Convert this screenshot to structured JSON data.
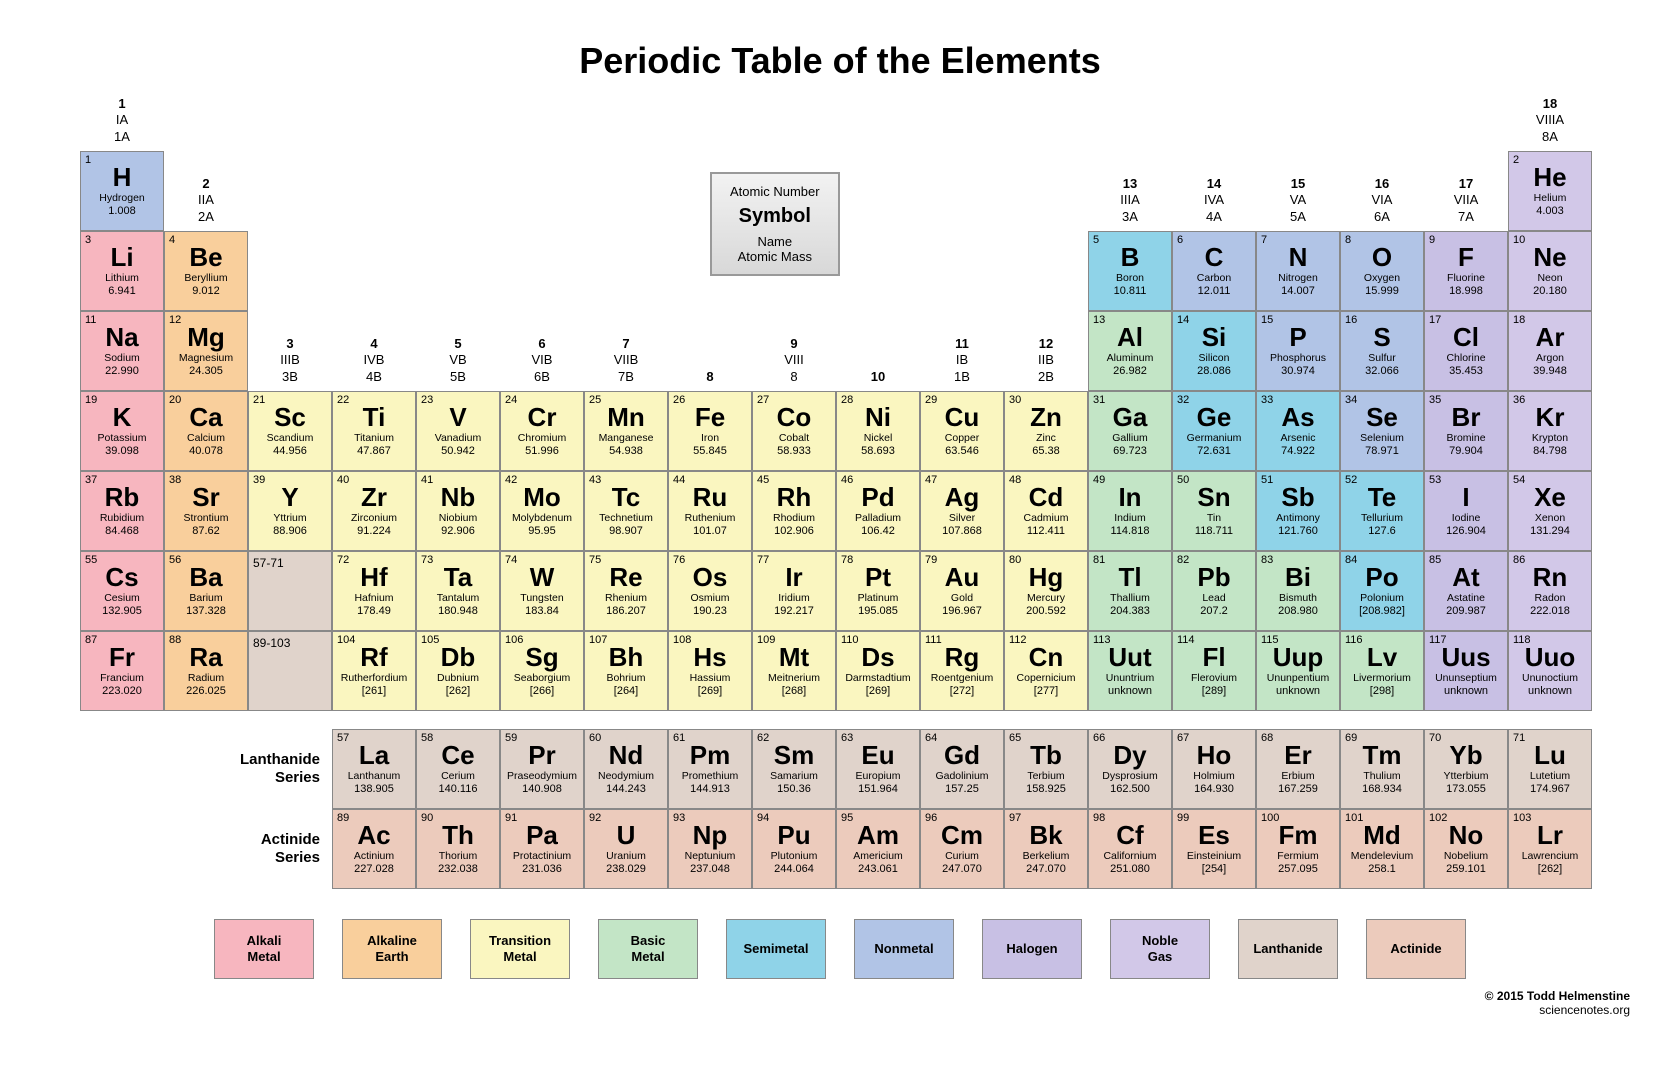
{
  "title": "Periodic Table of the Elements",
  "colors": {
    "alkali": "#f7b6bf",
    "alkaline": "#f9cf9c",
    "transition": "#faf6c0",
    "basic": "#c3e5c6",
    "semimetal": "#8fd3e8",
    "nonmetal": "#b1c4e6",
    "halogen": "#c8c0e4",
    "noble": "#d2c8e8",
    "lanthanide": "#e0d3cb",
    "actinide": "#eccbbc"
  },
  "key": {
    "atomic_number": "Atomic Number",
    "symbol": "Symbol",
    "name": "Name",
    "mass": "Atomic  Mass"
  },
  "groups": [
    {
      "col": 1,
      "n": "1",
      "a": "IA",
      "b": "1A"
    },
    {
      "col": 2,
      "n": "2",
      "a": "IIA",
      "b": "2A"
    },
    {
      "col": 3,
      "n": "3",
      "a": "IIIB",
      "b": "3B"
    },
    {
      "col": 4,
      "n": "4",
      "a": "IVB",
      "b": "4B"
    },
    {
      "col": 5,
      "n": "5",
      "a": "VB",
      "b": "5B"
    },
    {
      "col": 6,
      "n": "6",
      "a": "VIB",
      "b": "6B"
    },
    {
      "col": 7,
      "n": "7",
      "a": "VIIB",
      "b": "7B"
    },
    {
      "col": 8,
      "n": "8",
      "a": "",
      "b": ""
    },
    {
      "col": 9,
      "n": "9",
      "a": "VIII",
      "b": "8"
    },
    {
      "col": 10,
      "n": "10",
      "a": "",
      "b": ""
    },
    {
      "col": 11,
      "n": "11",
      "a": "IB",
      "b": "1B"
    },
    {
      "col": 12,
      "n": "12",
      "a": "IIB",
      "b": "2B"
    },
    {
      "col": 13,
      "n": "13",
      "a": "IIIA",
      "b": "3A"
    },
    {
      "col": 14,
      "n": "14",
      "a": "IVA",
      "b": "4A"
    },
    {
      "col": 15,
      "n": "15",
      "a": "VA",
      "b": "5A"
    },
    {
      "col": 16,
      "n": "16",
      "a": "VIA",
      "b": "6A"
    },
    {
      "col": 17,
      "n": "17",
      "a": "VIIA",
      "b": "7A"
    },
    {
      "col": 18,
      "n": "18",
      "a": "VIIIA",
      "b": "8A"
    }
  ],
  "elements": [
    {
      "n": 1,
      "s": "H",
      "name": "Hydrogen",
      "m": "1.008",
      "r": 1,
      "c": 1,
      "cat": "nonmetal"
    },
    {
      "n": 2,
      "s": "He",
      "name": "Helium",
      "m": "4.003",
      "r": 1,
      "c": 18,
      "cat": "noble"
    },
    {
      "n": 3,
      "s": "Li",
      "name": "Lithium",
      "m": "6.941",
      "r": 2,
      "c": 1,
      "cat": "alkali"
    },
    {
      "n": 4,
      "s": "Be",
      "name": "Beryllium",
      "m": "9.012",
      "r": 2,
      "c": 2,
      "cat": "alkaline"
    },
    {
      "n": 5,
      "s": "B",
      "name": "Boron",
      "m": "10.811",
      "r": 2,
      "c": 13,
      "cat": "semimetal"
    },
    {
      "n": 6,
      "s": "C",
      "name": "Carbon",
      "m": "12.011",
      "r": 2,
      "c": 14,
      "cat": "nonmetal"
    },
    {
      "n": 7,
      "s": "N",
      "name": "Nitrogen",
      "m": "14.007",
      "r": 2,
      "c": 15,
      "cat": "nonmetal"
    },
    {
      "n": 8,
      "s": "O",
      "name": "Oxygen",
      "m": "15.999",
      "r": 2,
      "c": 16,
      "cat": "nonmetal"
    },
    {
      "n": 9,
      "s": "F",
      "name": "Fluorine",
      "m": "18.998",
      "r": 2,
      "c": 17,
      "cat": "halogen"
    },
    {
      "n": 10,
      "s": "Ne",
      "name": "Neon",
      "m": "20.180",
      "r": 2,
      "c": 18,
      "cat": "noble"
    },
    {
      "n": 11,
      "s": "Na",
      "name": "Sodium",
      "m": "22.990",
      "r": 3,
      "c": 1,
      "cat": "alkali"
    },
    {
      "n": 12,
      "s": "Mg",
      "name": "Magnesium",
      "m": "24.305",
      "r": 3,
      "c": 2,
      "cat": "alkaline"
    },
    {
      "n": 13,
      "s": "Al",
      "name": "Aluminum",
      "m": "26.982",
      "r": 3,
      "c": 13,
      "cat": "basic"
    },
    {
      "n": 14,
      "s": "Si",
      "name": "Silicon",
      "m": "28.086",
      "r": 3,
      "c": 14,
      "cat": "semimetal"
    },
    {
      "n": 15,
      "s": "P",
      "name": "Phosphorus",
      "m": "30.974",
      "r": 3,
      "c": 15,
      "cat": "nonmetal"
    },
    {
      "n": 16,
      "s": "S",
      "name": "Sulfur",
      "m": "32.066",
      "r": 3,
      "c": 16,
      "cat": "nonmetal"
    },
    {
      "n": 17,
      "s": "Cl",
      "name": "Chlorine",
      "m": "35.453",
      "r": 3,
      "c": 17,
      "cat": "halogen"
    },
    {
      "n": 18,
      "s": "Ar",
      "name": "Argon",
      "m": "39.948",
      "r": 3,
      "c": 18,
      "cat": "noble"
    },
    {
      "n": 19,
      "s": "K",
      "name": "Potassium",
      "m": "39.098",
      "r": 4,
      "c": 1,
      "cat": "alkali"
    },
    {
      "n": 20,
      "s": "Ca",
      "name": "Calcium",
      "m": "40.078",
      "r": 4,
      "c": 2,
      "cat": "alkaline"
    },
    {
      "n": 21,
      "s": "Sc",
      "name": "Scandium",
      "m": "44.956",
      "r": 4,
      "c": 3,
      "cat": "transition"
    },
    {
      "n": 22,
      "s": "Ti",
      "name": "Titanium",
      "m": "47.867",
      "r": 4,
      "c": 4,
      "cat": "transition"
    },
    {
      "n": 23,
      "s": "V",
      "name": "Vanadium",
      "m": "50.942",
      "r": 4,
      "c": 5,
      "cat": "transition"
    },
    {
      "n": 24,
      "s": "Cr",
      "name": "Chromium",
      "m": "51.996",
      "r": 4,
      "c": 6,
      "cat": "transition"
    },
    {
      "n": 25,
      "s": "Mn",
      "name": "Manganese",
      "m": "54.938",
      "r": 4,
      "c": 7,
      "cat": "transition"
    },
    {
      "n": 26,
      "s": "Fe",
      "name": "Iron",
      "m": "55.845",
      "r": 4,
      "c": 8,
      "cat": "transition"
    },
    {
      "n": 27,
      "s": "Co",
      "name": "Cobalt",
      "m": "58.933",
      "r": 4,
      "c": 9,
      "cat": "transition"
    },
    {
      "n": 28,
      "s": "Ni",
      "name": "Nickel",
      "m": "58.693",
      "r": 4,
      "c": 10,
      "cat": "transition"
    },
    {
      "n": 29,
      "s": "Cu",
      "name": "Copper",
      "m": "63.546",
      "r": 4,
      "c": 11,
      "cat": "transition"
    },
    {
      "n": 30,
      "s": "Zn",
      "name": "Zinc",
      "m": "65.38",
      "r": 4,
      "c": 12,
      "cat": "transition"
    },
    {
      "n": 31,
      "s": "Ga",
      "name": "Gallium",
      "m": "69.723",
      "r": 4,
      "c": 13,
      "cat": "basic"
    },
    {
      "n": 32,
      "s": "Ge",
      "name": "Germanium",
      "m": "72.631",
      "r": 4,
      "c": 14,
      "cat": "semimetal"
    },
    {
      "n": 33,
      "s": "As",
      "name": "Arsenic",
      "m": "74.922",
      "r": 4,
      "c": 15,
      "cat": "semimetal"
    },
    {
      "n": 34,
      "s": "Se",
      "name": "Selenium",
      "m": "78.971",
      "r": 4,
      "c": 16,
      "cat": "nonmetal"
    },
    {
      "n": 35,
      "s": "Br",
      "name": "Bromine",
      "m": "79.904",
      "r": 4,
      "c": 17,
      "cat": "halogen"
    },
    {
      "n": 36,
      "s": "Kr",
      "name": "Krypton",
      "m": "84.798",
      "r": 4,
      "c": 18,
      "cat": "noble"
    },
    {
      "n": 37,
      "s": "Rb",
      "name": "Rubidium",
      "m": "84.468",
      "r": 5,
      "c": 1,
      "cat": "alkali"
    },
    {
      "n": 38,
      "s": "Sr",
      "name": "Strontium",
      "m": "87.62",
      "r": 5,
      "c": 2,
      "cat": "alkaline"
    },
    {
      "n": 39,
      "s": "Y",
      "name": "Yttrium",
      "m": "88.906",
      "r": 5,
      "c": 3,
      "cat": "transition"
    },
    {
      "n": 40,
      "s": "Zr",
      "name": "Zirconium",
      "m": "91.224",
      "r": 5,
      "c": 4,
      "cat": "transition"
    },
    {
      "n": 41,
      "s": "Nb",
      "name": "Niobium",
      "m": "92.906",
      "r": 5,
      "c": 5,
      "cat": "transition"
    },
    {
      "n": 42,
      "s": "Mo",
      "name": "Molybdenum",
      "m": "95.95",
      "r": 5,
      "c": 6,
      "cat": "transition"
    },
    {
      "n": 43,
      "s": "Tc",
      "name": "Technetium",
      "m": "98.907",
      "r": 5,
      "c": 7,
      "cat": "transition"
    },
    {
      "n": 44,
      "s": "Ru",
      "name": "Ruthenium",
      "m": "101.07",
      "r": 5,
      "c": 8,
      "cat": "transition"
    },
    {
      "n": 45,
      "s": "Rh",
      "name": "Rhodium",
      "m": "102.906",
      "r": 5,
      "c": 9,
      "cat": "transition"
    },
    {
      "n": 46,
      "s": "Pd",
      "name": "Palladium",
      "m": "106.42",
      "r": 5,
      "c": 10,
      "cat": "transition"
    },
    {
      "n": 47,
      "s": "Ag",
      "name": "Silver",
      "m": "107.868",
      "r": 5,
      "c": 11,
      "cat": "transition"
    },
    {
      "n": 48,
      "s": "Cd",
      "name": "Cadmium",
      "m": "112.411",
      "r": 5,
      "c": 12,
      "cat": "transition"
    },
    {
      "n": 49,
      "s": "In",
      "name": "Indium",
      "m": "114.818",
      "r": 5,
      "c": 13,
      "cat": "basic"
    },
    {
      "n": 50,
      "s": "Sn",
      "name": "Tin",
      "m": "118.711",
      "r": 5,
      "c": 14,
      "cat": "basic"
    },
    {
      "n": 51,
      "s": "Sb",
      "name": "Antimony",
      "m": "121.760",
      "r": 5,
      "c": 15,
      "cat": "semimetal"
    },
    {
      "n": 52,
      "s": "Te",
      "name": "Tellurium",
      "m": "127.6",
      "r": 5,
      "c": 16,
      "cat": "semimetal"
    },
    {
      "n": 53,
      "s": "I",
      "name": "Iodine",
      "m": "126.904",
      "r": 5,
      "c": 17,
      "cat": "halogen"
    },
    {
      "n": 54,
      "s": "Xe",
      "name": "Xenon",
      "m": "131.294",
      "r": 5,
      "c": 18,
      "cat": "noble"
    },
    {
      "n": 55,
      "s": "Cs",
      "name": "Cesium",
      "m": "132.905",
      "r": 6,
      "c": 1,
      "cat": "alkali"
    },
    {
      "n": 56,
      "s": "Ba",
      "name": "Barium",
      "m": "137.328",
      "r": 6,
      "c": 2,
      "cat": "alkaline"
    },
    {
      "n": 72,
      "s": "Hf",
      "name": "Hafnium",
      "m": "178.49",
      "r": 6,
      "c": 4,
      "cat": "transition"
    },
    {
      "n": 73,
      "s": "Ta",
      "name": "Tantalum",
      "m": "180.948",
      "r": 6,
      "c": 5,
      "cat": "transition"
    },
    {
      "n": 74,
      "s": "W",
      "name": "Tungsten",
      "m": "183.84",
      "r": 6,
      "c": 6,
      "cat": "transition"
    },
    {
      "n": 75,
      "s": "Re",
      "name": "Rhenium",
      "m": "186.207",
      "r": 6,
      "c": 7,
      "cat": "transition"
    },
    {
      "n": 76,
      "s": "Os",
      "name": "Osmium",
      "m": "190.23",
      "r": 6,
      "c": 8,
      "cat": "transition"
    },
    {
      "n": 77,
      "s": "Ir",
      "name": "Iridium",
      "m": "192.217",
      "r": 6,
      "c": 9,
      "cat": "transition"
    },
    {
      "n": 78,
      "s": "Pt",
      "name": "Platinum",
      "m": "195.085",
      "r": 6,
      "c": 10,
      "cat": "transition"
    },
    {
      "n": 79,
      "s": "Au",
      "name": "Gold",
      "m": "196.967",
      "r": 6,
      "c": 11,
      "cat": "transition"
    },
    {
      "n": 80,
      "s": "Hg",
      "name": "Mercury",
      "m": "200.592",
      "r": 6,
      "c": 12,
      "cat": "transition"
    },
    {
      "n": 81,
      "s": "Tl",
      "name": "Thallium",
      "m": "204.383",
      "r": 6,
      "c": 13,
      "cat": "basic"
    },
    {
      "n": 82,
      "s": "Pb",
      "name": "Lead",
      "m": "207.2",
      "r": 6,
      "c": 14,
      "cat": "basic"
    },
    {
      "n": 83,
      "s": "Bi",
      "name": "Bismuth",
      "m": "208.980",
      "r": 6,
      "c": 15,
      "cat": "basic"
    },
    {
      "n": 84,
      "s": "Po",
      "name": "Polonium",
      "m": "[208.982]",
      "r": 6,
      "c": 16,
      "cat": "semimetal"
    },
    {
      "n": 85,
      "s": "At",
      "name": "Astatine",
      "m": "209.987",
      "r": 6,
      "c": 17,
      "cat": "halogen"
    },
    {
      "n": 86,
      "s": "Rn",
      "name": "Radon",
      "m": "222.018",
      "r": 6,
      "c": 18,
      "cat": "noble"
    },
    {
      "n": 87,
      "s": "Fr",
      "name": "Francium",
      "m": "223.020",
      "r": 7,
      "c": 1,
      "cat": "alkali"
    },
    {
      "n": 88,
      "s": "Ra",
      "name": "Radium",
      "m": "226.025",
      "r": 7,
      "c": 2,
      "cat": "alkaline"
    },
    {
      "n": 104,
      "s": "Rf",
      "name": "Rutherfordium",
      "m": "[261]",
      "r": 7,
      "c": 4,
      "cat": "transition"
    },
    {
      "n": 105,
      "s": "Db",
      "name": "Dubnium",
      "m": "[262]",
      "r": 7,
      "c": 5,
      "cat": "transition"
    },
    {
      "n": 106,
      "s": "Sg",
      "name": "Seaborgium",
      "m": "[266]",
      "r": 7,
      "c": 6,
      "cat": "transition"
    },
    {
      "n": 107,
      "s": "Bh",
      "name": "Bohrium",
      "m": "[264]",
      "r": 7,
      "c": 7,
      "cat": "transition"
    },
    {
      "n": 108,
      "s": "Hs",
      "name": "Hassium",
      "m": "[269]",
      "r": 7,
      "c": 8,
      "cat": "transition"
    },
    {
      "n": 109,
      "s": "Mt",
      "name": "Meitnerium",
      "m": "[268]",
      "r": 7,
      "c": 9,
      "cat": "transition"
    },
    {
      "n": 110,
      "s": "Ds",
      "name": "Darmstadtium",
      "m": "[269]",
      "r": 7,
      "c": 10,
      "cat": "transition"
    },
    {
      "n": 111,
      "s": "Rg",
      "name": "Roentgenium",
      "m": "[272]",
      "r": 7,
      "c": 11,
      "cat": "transition"
    },
    {
      "n": 112,
      "s": "Cn",
      "name": "Copernicium",
      "m": "[277]",
      "r": 7,
      "c": 12,
      "cat": "transition"
    },
    {
      "n": 113,
      "s": "Uut",
      "name": "Ununtrium",
      "m": "unknown",
      "r": 7,
      "c": 13,
      "cat": "basic"
    },
    {
      "n": 114,
      "s": "Fl",
      "name": "Flerovium",
      "m": "[289]",
      "r": 7,
      "c": 14,
      "cat": "basic"
    },
    {
      "n": 115,
      "s": "Uup",
      "name": "Ununpentium",
      "m": "unknown",
      "r": 7,
      "c": 15,
      "cat": "basic"
    },
    {
      "n": 116,
      "s": "Lv",
      "name": "Livermorium",
      "m": "[298]",
      "r": 7,
      "c": 16,
      "cat": "basic"
    },
    {
      "n": 117,
      "s": "Uus",
      "name": "Ununseptium",
      "m": "unknown",
      "r": 7,
      "c": 17,
      "cat": "halogen"
    },
    {
      "n": 118,
      "s": "Uuo",
      "name": "Ununoctium",
      "m": "unknown",
      "r": 7,
      "c": 18,
      "cat": "noble"
    }
  ],
  "ranges": [
    {
      "label": "57-71",
      "r": 6,
      "c": 3
    },
    {
      "label": "89-103",
      "r": 7,
      "c": 3
    }
  ],
  "lanthanides": [
    {
      "n": 57,
      "s": "La",
      "name": "Lanthanum",
      "m": "138.905"
    },
    {
      "n": 58,
      "s": "Ce",
      "name": "Cerium",
      "m": "140.116"
    },
    {
      "n": 59,
      "s": "Pr",
      "name": "Praseodymium",
      "m": "140.908"
    },
    {
      "n": 60,
      "s": "Nd",
      "name": "Neodymium",
      "m": "144.243"
    },
    {
      "n": 61,
      "s": "Pm",
      "name": "Promethium",
      "m": "144.913"
    },
    {
      "n": 62,
      "s": "Sm",
      "name": "Samarium",
      "m": "150.36"
    },
    {
      "n": 63,
      "s": "Eu",
      "name": "Europium",
      "m": "151.964"
    },
    {
      "n": 64,
      "s": "Gd",
      "name": "Gadolinium",
      "m": "157.25"
    },
    {
      "n": 65,
      "s": "Tb",
      "name": "Terbium",
      "m": "158.925"
    },
    {
      "n": 66,
      "s": "Dy",
      "name": "Dysprosium",
      "m": "162.500"
    },
    {
      "n": 67,
      "s": "Ho",
      "name": "Holmium",
      "m": "164.930"
    },
    {
      "n": 68,
      "s": "Er",
      "name": "Erbium",
      "m": "167.259"
    },
    {
      "n": 69,
      "s": "Tm",
      "name": "Thulium",
      "m": "168.934"
    },
    {
      "n": 70,
      "s": "Yb",
      "name": "Ytterbium",
      "m": "173.055"
    },
    {
      "n": 71,
      "s": "Lu",
      "name": "Lutetium",
      "m": "174.967"
    }
  ],
  "actinides": [
    {
      "n": 89,
      "s": "Ac",
      "name": "Actinium",
      "m": "227.028"
    },
    {
      "n": 90,
      "s": "Th",
      "name": "Thorium",
      "m": "232.038"
    },
    {
      "n": 91,
      "s": "Pa",
      "name": "Protactinium",
      "m": "231.036"
    },
    {
      "n": 92,
      "s": "U",
      "name": "Uranium",
      "m": "238.029"
    },
    {
      "n": 93,
      "s": "Np",
      "name": "Neptunium",
      "m": "237.048"
    },
    {
      "n": 94,
      "s": "Pu",
      "name": "Plutonium",
      "m": "244.064"
    },
    {
      "n": 95,
      "s": "Am",
      "name": "Americium",
      "m": "243.061"
    },
    {
      "n": 96,
      "s": "Cm",
      "name": "Curium",
      "m": "247.070"
    },
    {
      "n": 97,
      "s": "Bk",
      "name": "Berkelium",
      "m": "247.070"
    },
    {
      "n": 98,
      "s": "Cf",
      "name": "Californium",
      "m": "251.080"
    },
    {
      "n": 99,
      "s": "Es",
      "name": "Einsteinium",
      "m": "[254]"
    },
    {
      "n": 100,
      "s": "Fm",
      "name": "Fermium",
      "m": "257.095"
    },
    {
      "n": 101,
      "s": "Md",
      "name": "Mendelevium",
      "m": "258.1"
    },
    {
      "n": 102,
      "s": "No",
      "name": "Nobelium",
      "m": "259.101"
    },
    {
      "n": 103,
      "s": "Lr",
      "name": "Lawrencium",
      "m": "[262]"
    }
  ],
  "series_labels": {
    "lan": "Lanthanide Series",
    "act": "Actinide Series"
  },
  "legend": [
    {
      "label": "Alkali Metal",
      "cat": "alkali"
    },
    {
      "label": "Alkaline Earth",
      "cat": "alkaline"
    },
    {
      "label": "Transition Metal",
      "cat": "transition"
    },
    {
      "label": "Basic Metal",
      "cat": "basic"
    },
    {
      "label": "Semimetal",
      "cat": "semimetal"
    },
    {
      "label": "Nonmetal",
      "cat": "nonmetal"
    },
    {
      "label": "Halogen",
      "cat": "halogen"
    },
    {
      "label": "Noble Gas",
      "cat": "noble"
    },
    {
      "label": "Lanthanide",
      "cat": "lanthanide"
    },
    {
      "label": "Actinide",
      "cat": "actinide"
    }
  ],
  "footer": {
    "copyright": "© 2015 Todd Helmenstine",
    "site": "sciencenotes.org"
  }
}
